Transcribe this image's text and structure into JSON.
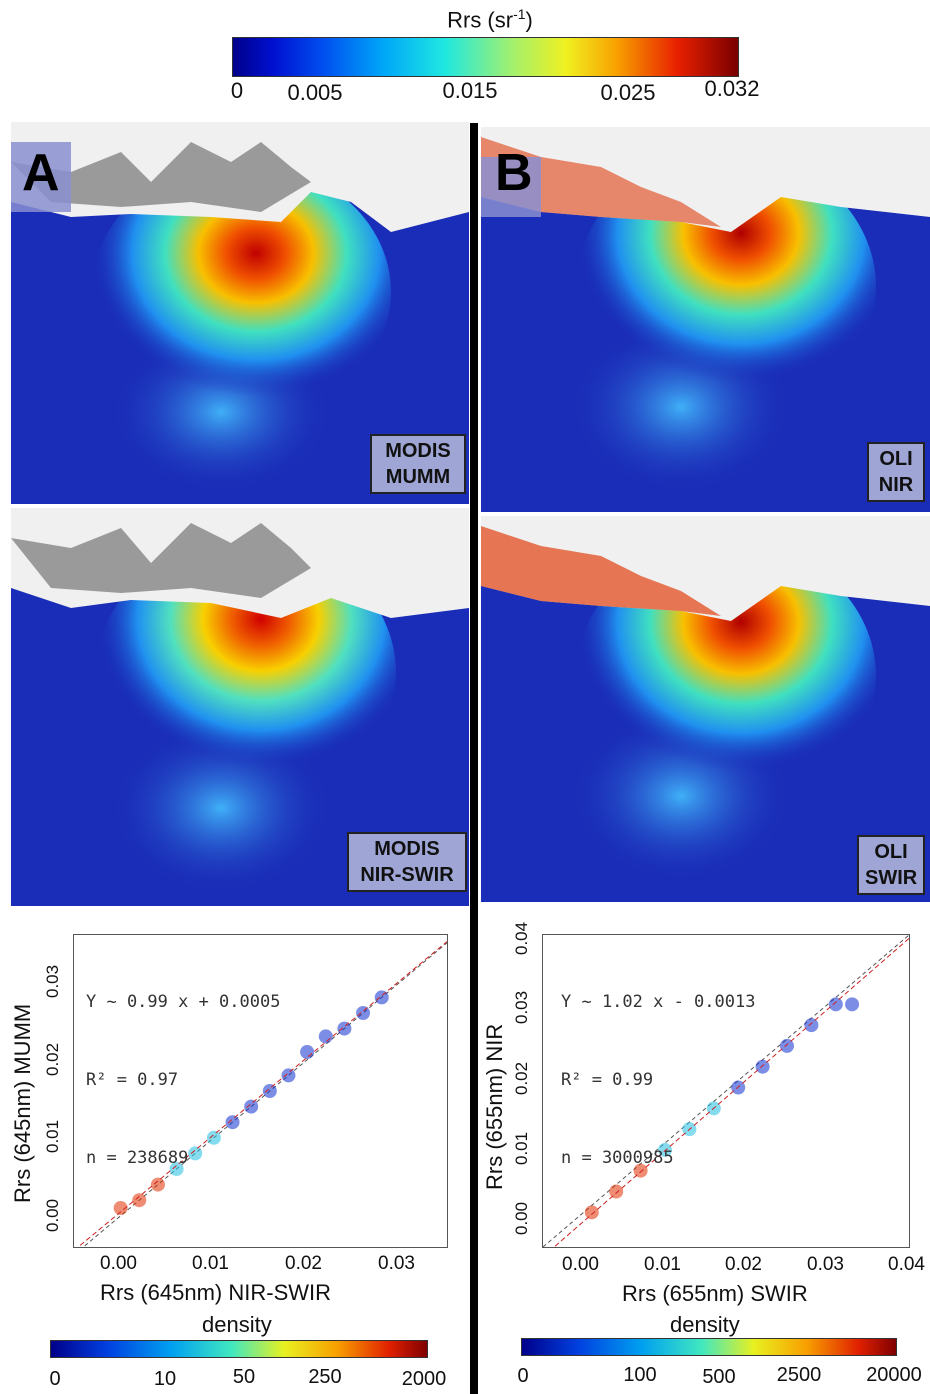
{
  "top_colorbar": {
    "title": "Rrs (sr",
    "title_sup": "-1",
    "title_end": ")",
    "ticks": [
      "0",
      "0.005",
      "0.015",
      "0.025",
      "0.032"
    ]
  },
  "panel_letters": {
    "a": "A",
    "b": "B"
  },
  "map_labels": {
    "modis_mumm": "MODIS\nMUMM",
    "oli_nir": "OLI\nNIR",
    "modis_nirswir": "MODIS\nNIR-SWIR",
    "oli_swir": "OLI\nSWIR"
  },
  "chart_data": [
    {
      "type": "scatter",
      "xlabel": "Rrs (645nm) NIR-SWIR",
      "ylabel": "Rrs (645nm) MUMM",
      "x_ticks": [
        "0.00",
        "0.01",
        "0.02",
        "0.03"
      ],
      "y_ticks": [
        "0.00",
        "0.01",
        "0.02",
        "0.03"
      ],
      "xlim": [
        -0.005,
        0.035
      ],
      "ylim": [
        -0.004,
        0.036
      ],
      "fit": {
        "slope": 0.99,
        "intercept": 0.0005
      },
      "stats": [
        "Y ~ 0.99 x + 0.0005",
        "R² = 0.97",
        "n = 238689"
      ],
      "density_label": "density",
      "density_ticks": [
        "0",
        "10",
        "50",
        "250",
        "2000"
      ],
      "points": [
        [
          0.0,
          0.001
        ],
        [
          0.002,
          0.002
        ],
        [
          0.004,
          0.004
        ],
        [
          0.006,
          0.006
        ],
        [
          0.008,
          0.008
        ],
        [
          0.01,
          0.01
        ],
        [
          0.012,
          0.012
        ],
        [
          0.014,
          0.014
        ],
        [
          0.016,
          0.016
        ],
        [
          0.018,
          0.018
        ],
        [
          0.02,
          0.021
        ],
        [
          0.022,
          0.023
        ],
        [
          0.024,
          0.024
        ],
        [
          0.026,
          0.026
        ],
        [
          0.028,
          0.028
        ]
      ]
    },
    {
      "type": "scatter",
      "xlabel": "Rrs (655nm) SWIR",
      "ylabel": "Rrs (655nm) NIR",
      "x_ticks": [
        "0.00",
        "0.01",
        "0.02",
        "0.03",
        "0.04"
      ],
      "y_ticks": [
        "0.00",
        "0.01",
        "0.02",
        "0.03",
        "0.04"
      ],
      "xlim": [
        -0.005,
        0.04
      ],
      "ylim": [
        -0.005,
        0.04
      ],
      "fit": {
        "slope": 1.02,
        "intercept": -0.0013
      },
      "stats": [
        "Y ~ 1.02 x - 0.0013",
        "R² = 0.99",
        "n = 3000985"
      ],
      "density_label": "density",
      "density_ticks": [
        "0",
        "100",
        "500",
        "2500",
        "20000"
      ],
      "points": [
        [
          0.001,
          0.0
        ],
        [
          0.004,
          0.003
        ],
        [
          0.007,
          0.006
        ],
        [
          0.01,
          0.009
        ],
        [
          0.013,
          0.012
        ],
        [
          0.016,
          0.015
        ],
        [
          0.019,
          0.018
        ],
        [
          0.022,
          0.021
        ],
        [
          0.025,
          0.024
        ],
        [
          0.028,
          0.027
        ],
        [
          0.031,
          0.03
        ],
        [
          0.033,
          0.03
        ]
      ]
    }
  ]
}
